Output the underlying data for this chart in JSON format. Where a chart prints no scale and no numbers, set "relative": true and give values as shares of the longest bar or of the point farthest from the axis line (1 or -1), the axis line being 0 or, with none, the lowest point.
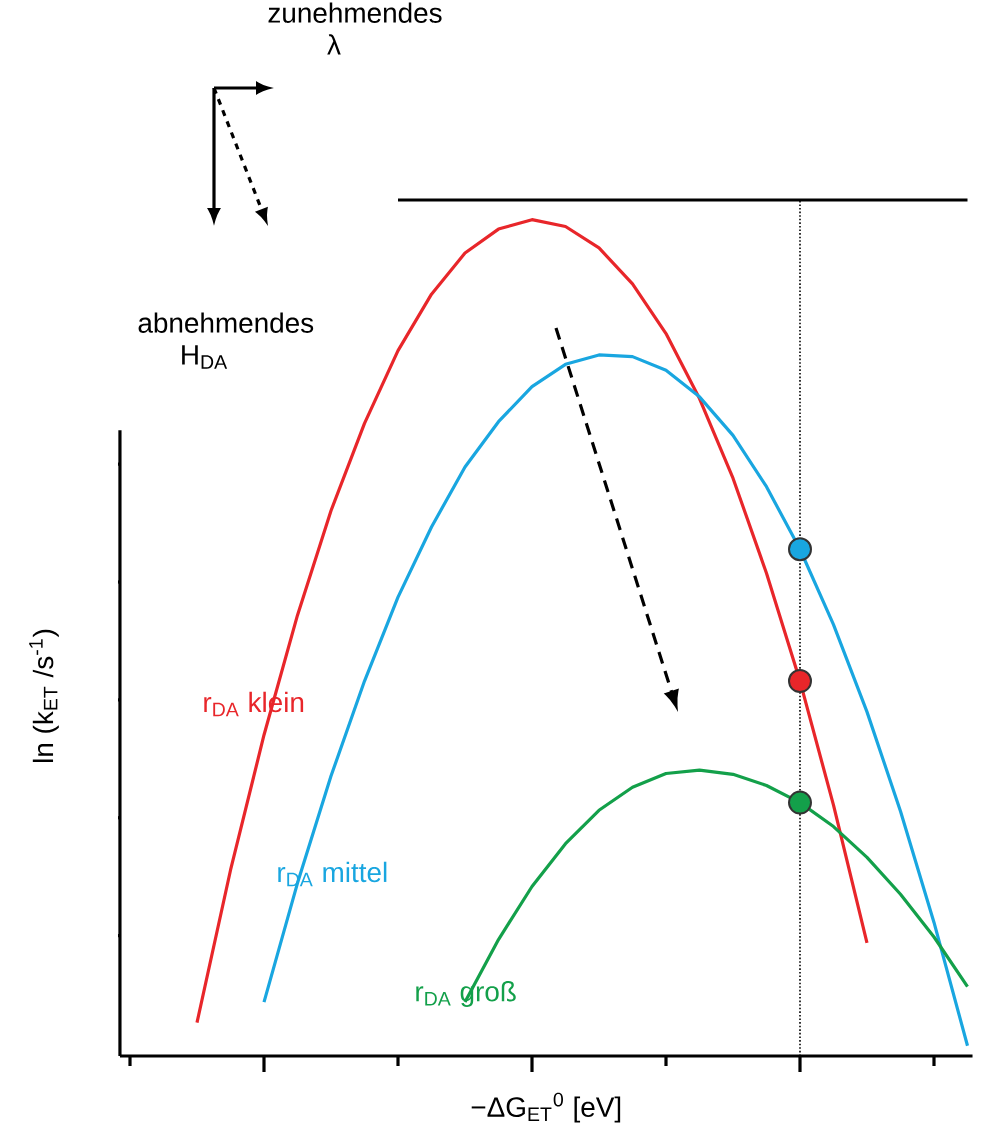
{
  "chart_data": {
    "type": "line",
    "relative": true,
    "legend": false,
    "xlabel": "−ΔG$_{ET}$$^{0}$ [eV]",
    "ylabel": "ln (k$_{ET}$ /s$^{-1}$)",
    "categories": [
      null,
      null,
      null,
      null,
      null,
      null,
      null,
      null,
      null,
      null,
      null,
      null,
      null,
      null,
      null,
      null,
      null,
      null,
      null,
      null,
      null,
      null,
      null,
      null,
      null,
      null
    ],
    "series": [
      {
        "name": "r$_{DA}$ klein",
        "color": "#e8262a",
        "values": [
          null,
          null,
          0.039,
          0.217,
          0.375,
          0.515,
          0.637,
          0.739,
          0.824,
          0.89,
          0.938,
          0.966,
          0.977,
          0.969,
          0.944,
          0.902,
          0.844,
          0.768,
          0.675,
          0.564,
          0.438,
          0.293,
          0.132,
          null,
          null,
          null
        ]
      },
      {
        "name": "r$_{DA}$ mittel",
        "color": "#19a6e0",
        "values": [
          null,
          null,
          null,
          null,
          0.063,
          0.202,
          0.327,
          0.438,
          0.536,
          0.618,
          0.688,
          0.741,
          0.782,
          0.808,
          0.819,
          0.817,
          0.801,
          0.77,
          0.725,
          0.665,
          0.592,
          0.504,
          0.402,
          0.286,
          0.156,
          0.012
        ]
      },
      {
        "name": "r$_{DA}$ groß",
        "color": "#13a04a",
        "values": [
          null,
          null,
          null,
          null,
          null,
          null,
          null,
          null,
          null,
          null,
          0.063,
          0.136,
          0.198,
          0.248,
          0.287,
          0.314,
          0.33,
          0.334,
          0.329,
          0.316,
          0.296,
          0.268,
          0.232,
          0.189,
          0.139,
          0.081
        ]
      },
      {
        "color": "#000000",
        "values": [
          null,
          null,
          null,
          null,
          null,
          null,
          null,
          null,
          1,
          1,
          1,
          1,
          1,
          1,
          1,
          1,
          1,
          1,
          1,
          1,
          1,
          1,
          1,
          1,
          1,
          1
        ]
      }
    ],
    "annotations": [
      "zunehmendes λ",
      "abnehmendes H$_{DA}$"
    ]
  }
}
